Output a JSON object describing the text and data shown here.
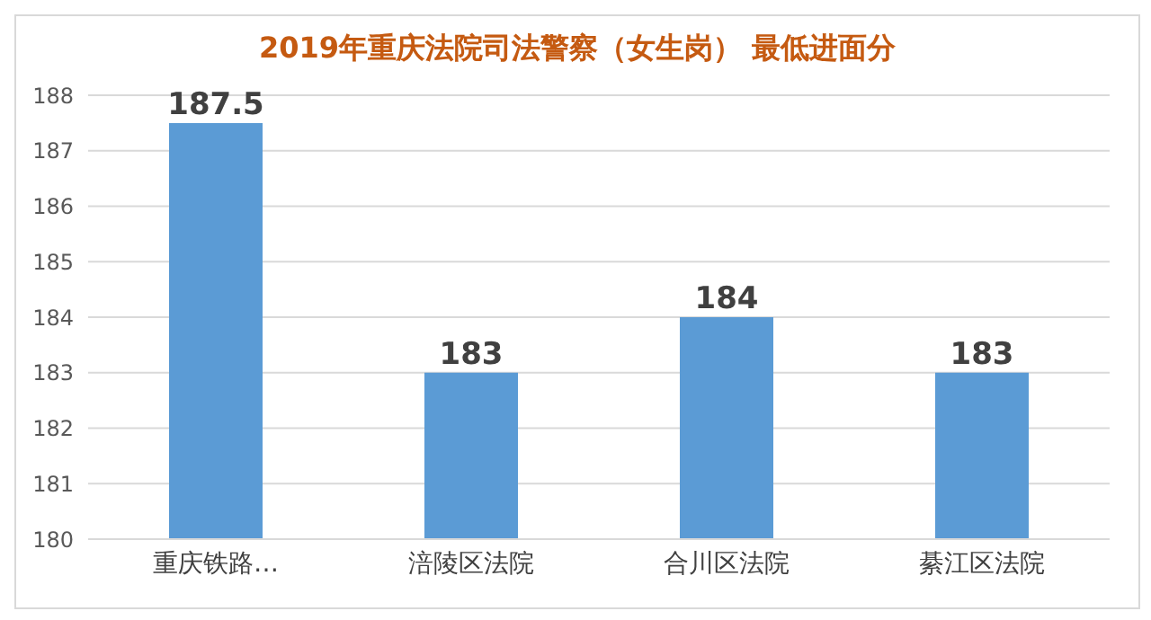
{
  "chart_data": {
    "type": "bar",
    "title": "2019年重庆法院司法警察（女生岗） 最低进面分",
    "categories": [
      "重庆铁路…",
      "涪陵区法院",
      "合川区法院",
      "綦江区法院"
    ],
    "values": [
      187.5,
      183,
      184,
      183
    ],
    "color": "#5b9bd5",
    "ylim": [
      180,
      188
    ],
    "yticks": [
      180,
      181,
      182,
      183,
      184,
      185,
      186,
      187,
      188
    ],
    "grid": "y",
    "data_labels": true
  }
}
